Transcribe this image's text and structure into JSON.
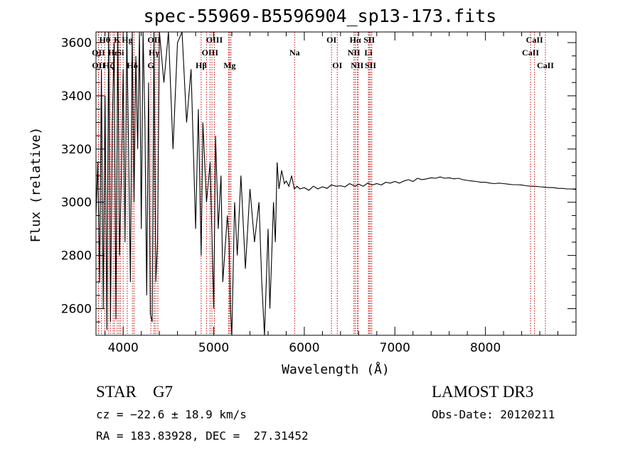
{
  "chart_data": {
    "type": "line",
    "title": "spec-55969-B5596904_sp13-173.fits",
    "xlabel": "Wavelength (Å)",
    "ylabel": "Flux (relative)",
    "xlim": [
      3700,
      9000
    ],
    "ylim": [
      2500,
      3640
    ],
    "x_ticks": [
      4000,
      5000,
      6000,
      7000,
      8000
    ],
    "y_ticks": [
      2600,
      2800,
      3000,
      3200,
      3400,
      3600
    ],
    "x_minor_step": 200,
    "y_minor_step": 50,
    "series": [
      {
        "name": "spectrum",
        "x": [
          3700,
          3720,
          3740,
          3760,
          3780,
          3800,
          3820,
          3840,
          3860,
          3880,
          3900,
          3920,
          3940,
          3960,
          3980,
          4000,
          4020,
          4040,
          4060,
          4080,
          4100,
          4120,
          4140,
          4160,
          4180,
          4200,
          4220,
          4240,
          4260,
          4280,
          4300,
          4320,
          4340,
          4360,
          4380,
          4400,
          4450,
          4500,
          4550,
          4600,
          4650,
          4700,
          4750,
          4800,
          4830,
          4861,
          4880,
          4920,
          4960,
          5000,
          5020,
          5050,
          5080,
          5100,
          5150,
          5170,
          5183,
          5200,
          5230,
          5260,
          5300,
          5350,
          5400,
          5450,
          5500,
          5530,
          5560,
          5600,
          5620,
          5640,
          5660,
          5680,
          5700,
          5720,
          5750,
          5780,
          5800,
          5830,
          5860,
          5890,
          5920,
          5950,
          6000,
          6050,
          6100,
          6150,
          6200,
          6250,
          6300,
          6350,
          6400,
          6450,
          6500,
          6563,
          6600,
          6650,
          6700,
          6750,
          6800,
          6850,
          6900,
          6950,
          7000,
          7050,
          7100,
          7150,
          7200,
          7250,
          7300,
          7350,
          7400,
          7450,
          7500,
          7550,
          7600,
          7650,
          7700,
          7750,
          7800,
          7850,
          7900,
          7950,
          8000,
          8050,
          8100,
          8150,
          8200,
          8250,
          8300,
          8350,
          8400,
          8450,
          8500,
          8550,
          8600,
          8650,
          8700,
          8750,
          8800,
          8850,
          8900,
          8950,
          9000
        ],
        "y": [
          2950,
          3150,
          2700,
          3500,
          2600,
          3400,
          2520,
          3640,
          2550,
          3300,
          3600,
          2560,
          3640,
          2800,
          3100,
          3500,
          2850,
          3640,
          3200,
          2700,
          3640,
          3000,
          3550,
          3200,
          3640,
          2900,
          3640,
          3300,
          2650,
          3450,
          2580,
          2550,
          3640,
          2700,
          2850,
          3640,
          3450,
          3640,
          3200,
          3600,
          3640,
          3300,
          3500,
          2900,
          3350,
          2800,
          3300,
          3000,
          3150,
          2600,
          3250,
          2900,
          3100,
          2700,
          2950,
          2850,
          2600,
          2500,
          3000,
          2800,
          3100,
          2750,
          3050,
          2850,
          3000,
          2700,
          2500,
          2900,
          2600,
          2800,
          3000,
          2850,
          3150,
          3050,
          3120,
          3070,
          3080,
          3060,
          3100,
          3050,
          3060,
          3050,
          3055,
          3045,
          3060,
          3050,
          3058,
          3052,
          3065,
          3060,
          3062,
          3058,
          3070,
          3060,
          3068,
          3060,
          3072,
          3065,
          3070,
          3065,
          3075,
          3072,
          3078,
          3072,
          3080,
          3085,
          3078,
          3090,
          3085,
          3088,
          3092,
          3090,
          3095,
          3090,
          3092,
          3088,
          3090,
          3085,
          3082,
          3080,
          3078,
          3075,
          3075,
          3072,
          3070,
          3072,
          3070,
          3068,
          3066,
          3066,
          3065,
          3062,
          3060,
          3060,
          3058,
          3057,
          3055,
          3055,
          3052,
          3052,
          3050,
          3050,
          3048
        ]
      }
    ],
    "line_markers": [
      {
        "name": "Hθ",
        "x": 3797,
        "row": 0
      },
      {
        "name": "K",
        "x": 3934,
        "row": 0
      },
      {
        "name": "Hg",
        "x": 4045,
        "row": 0
      },
      {
        "name": "OII",
        "x": 4342,
        "row": 0
      },
      {
        "name": "OIII",
        "x": 5007,
        "row": 0
      },
      {
        "name": "OI",
        "x": 6300,
        "row": 0
      },
      {
        "name": "Hα",
        "x": 6563,
        "row": 0
      },
      {
        "name": "SII",
        "x": 6717,
        "row": 0
      },
      {
        "name": "CaII",
        "x": 8542,
        "row": 0
      },
      {
        "name": "OII",
        "x": 3727,
        "row": 1
      },
      {
        "name": "Hε",
        "x": 3889,
        "row": 1
      },
      {
        "name": "Si",
        "x": 3970,
        "row": 1
      },
      {
        "name": "Hγ",
        "x": 4340,
        "row": 1
      },
      {
        "name": "OIII",
        "x": 4959,
        "row": 1
      },
      {
        "name": "Na",
        "x": 5893,
        "row": 1
      },
      {
        "name": "NII",
        "x": 6548,
        "row": 1
      },
      {
        "name": "Li",
        "x": 6708,
        "row": 1
      },
      {
        "name": "CaII",
        "x": 8498,
        "row": 1
      },
      {
        "name": "OII",
        "x": 3729,
        "row": 2
      },
      {
        "name": "Hζ",
        "x": 3835,
        "row": 2
      },
      {
        "name": "Hδ",
        "x": 4102,
        "row": 2
      },
      {
        "name": "G",
        "x": 4305,
        "row": 2
      },
      {
        "name": "Hβ",
        "x": 4861,
        "row": 2
      },
      {
        "name": "Mg",
        "x": 5175,
        "row": 2
      },
      {
        "name": "OI",
        "x": 6364,
        "row": 2
      },
      {
        "name": "NII",
        "x": 6584,
        "row": 2
      },
      {
        "name": "SII",
        "x": 6731,
        "row": 2
      },
      {
        "name": "CaII",
        "x": 8662,
        "row": 2
      }
    ],
    "extra_marker_lines": [
      3760,
      3858,
      3905,
      3953,
      4000,
      4120,
      4360,
      4383,
      4920,
      4980,
      5165,
      5190,
      6595,
      6745
    ]
  },
  "info": {
    "class": "STAR    G7",
    "survey": "LAMOST DR3",
    "cz": "cz = −22.6 ± 18.9 km/s",
    "obs_date": "Obs-Date: 20120211",
    "coords": "RA = 183.83928, DEC =  27.31452"
  },
  "colors": {
    "axes": "#000000",
    "spectrum": "#000000",
    "marker_line": "#cc0000"
  }
}
